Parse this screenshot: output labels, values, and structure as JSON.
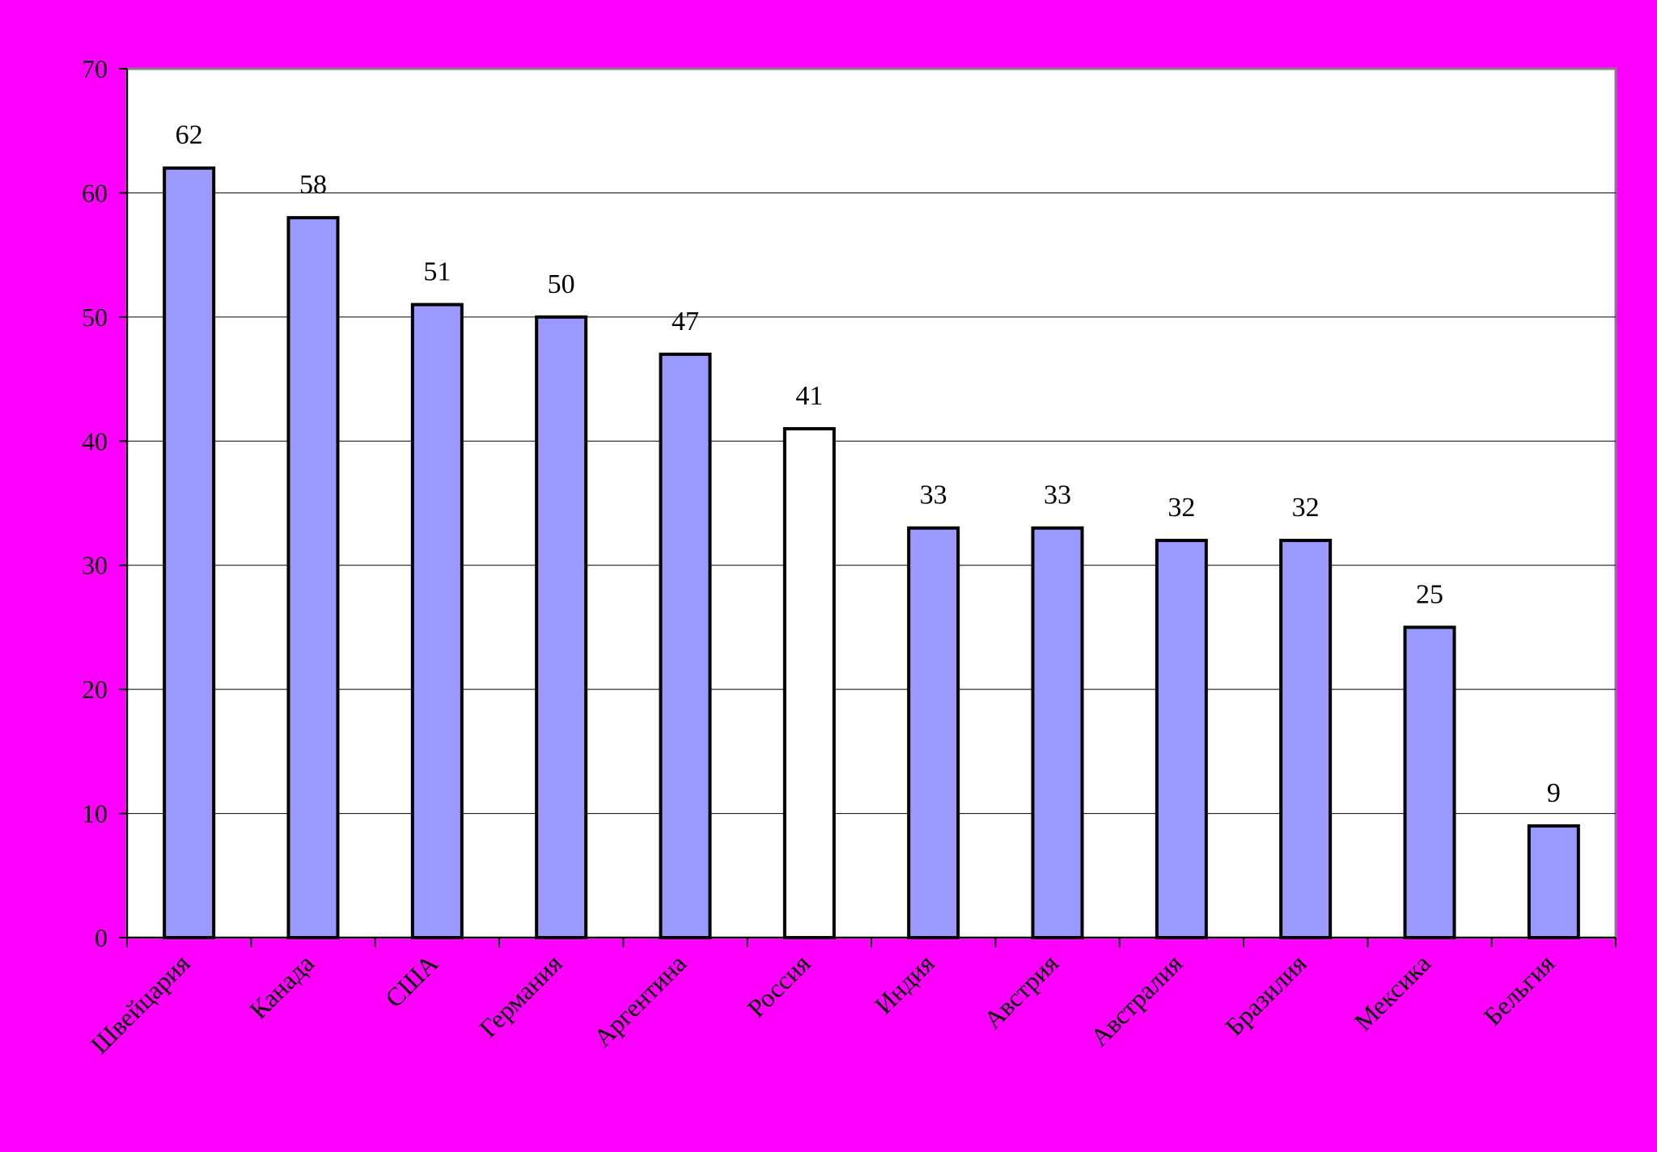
{
  "colors": {
    "background": "#FF00FF",
    "plot_area": "#FFFFFF",
    "bar_fill": "#9999FF",
    "bar_highlight_fill": "#FFFFFF",
    "bar_stroke": "#000000",
    "gridline": "#000000",
    "axis": "#000000",
    "plot_border": "#808080"
  },
  "chart_data": {
    "type": "bar",
    "title": "",
    "xlabel": "",
    "ylabel": "",
    "categories": [
      "Швейцария",
      "Канада",
      "США",
      "Германия",
      "Аргентина",
      "Россия",
      "Индия",
      "Австрия",
      "Австралия",
      "Бразилия",
      "Мексика",
      "Бельгия"
    ],
    "values": [
      62,
      58,
      51,
      50,
      47,
      41,
      33,
      33,
      32,
      32,
      25,
      9
    ],
    "highlight_category": "Россия",
    "ylim": [
      0,
      70
    ],
    "yticks": [
      0,
      10,
      20,
      30,
      40,
      50,
      60,
      70
    ],
    "grid": true,
    "legend": "none",
    "data_labels": true
  }
}
